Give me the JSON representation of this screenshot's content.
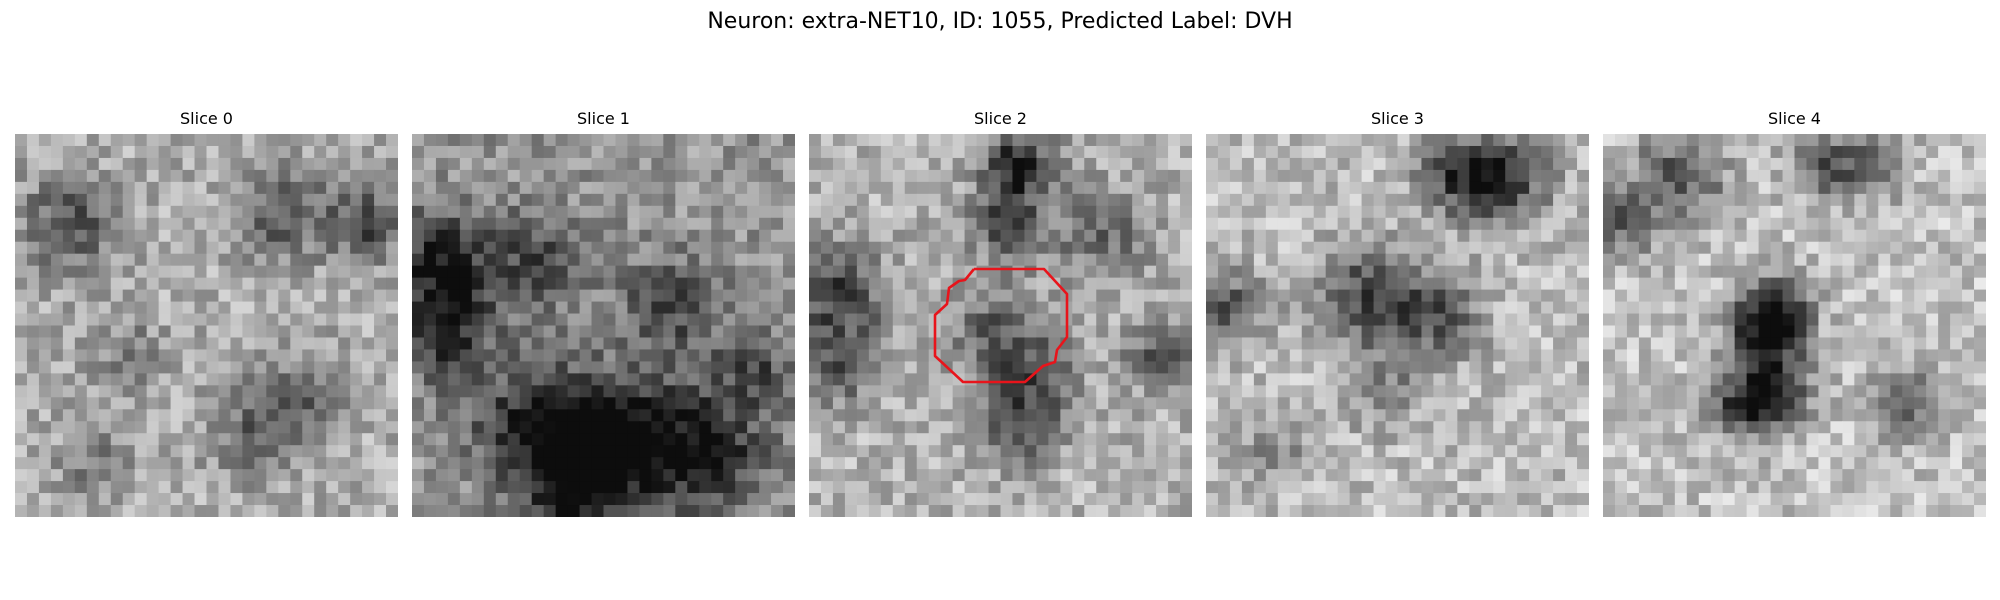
{
  "figure": {
    "title": "Neuron: extra-NET10, ID: 1055, Predicted Label: DVH"
  },
  "panels": [
    {
      "title": "Slice 0",
      "has_contour": false
    },
    {
      "title": "Slice 1",
      "has_contour": false
    },
    {
      "title": "Slice 2",
      "has_contour": true
    },
    {
      "title": "Slice 3",
      "has_contour": false
    },
    {
      "title": "Slice 4",
      "has_contour": false
    }
  ],
  "colors": {
    "contour": "#e8141b",
    "background": "#ffffff"
  }
}
